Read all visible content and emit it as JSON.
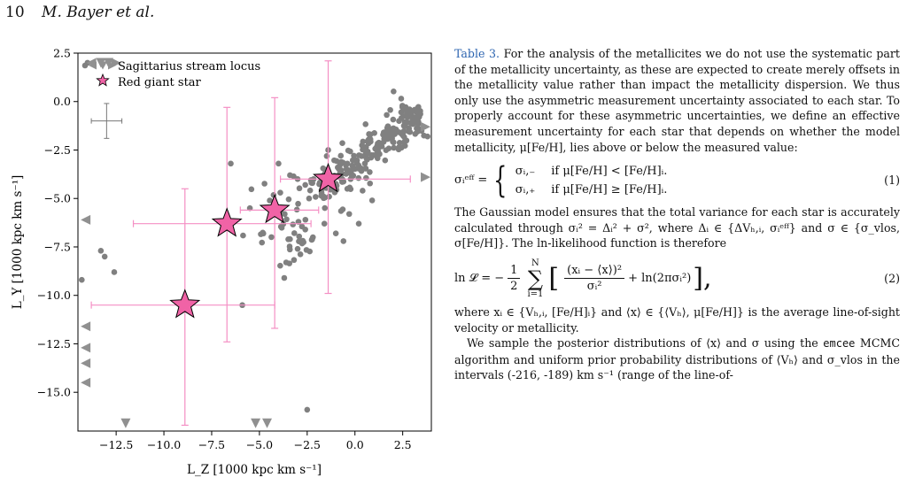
{
  "page_header": {
    "page_number": "10",
    "authors": "M. Bayer et al."
  },
  "figure": {
    "legend": {
      "stream_label": "Sagittarius stream locus",
      "star_label": "Red giant star"
    },
    "colors": {
      "stream": "#808080",
      "star_fill": "#f063a6",
      "error_bars": "#f48fc4"
    },
    "icons": {
      "stream_marker": "circle-and-triangle-markers",
      "star_marker": "star-icon"
    }
  },
  "chart_data": {
    "type": "scatter",
    "xlabel": "L_Z [1000 kpc km s⁻¹]",
    "ylabel": "L_Y [1000 kpc km s⁻¹]",
    "xlim": [
      -14.5,
      4
    ],
    "ylim": [
      -17,
      2.5
    ],
    "xticks": [
      -12.5,
      -10,
      -7.5,
      -5,
      -2.5,
      0,
      2.5
    ],
    "xtick_labels": [
      "−12.5",
      "−10.0",
      "−7.5",
      "−5.0",
      "−2.5",
      "0.0",
      "2.5"
    ],
    "yticks": [
      2.5,
      0,
      -2.5,
      -5,
      -7.5,
      -10,
      -12.5,
      -15
    ],
    "ytick_labels": [
      "2.5",
      "0.0",
      "−2.5",
      "−5.0",
      "−7.5",
      "−10.0",
      "−12.5",
      "−15.0"
    ],
    "legend_position": "top-left",
    "typical_uncertainty": {
      "x": -13.0,
      "y": -1.0,
      "dx": 0.8,
      "dy": 0.9
    },
    "red_giant_stars": [
      {
        "x": -1.4,
        "y": -4.0,
        "xerr": [
          2.5,
          4.3
        ],
        "yerr": [
          5.9,
          6.1
        ]
      },
      {
        "x": -4.2,
        "y": -5.6,
        "xerr": [
          1.8,
          2.3
        ],
        "yerr": [
          6.1,
          5.8
        ]
      },
      {
        "x": -6.7,
        "y": -6.3,
        "xerr": [
          4.9,
          4.4
        ],
        "yerr": [
          6.1,
          6.0
        ]
      },
      {
        "x": -8.9,
        "y": -10.5,
        "xerr": [
          4.9,
          4.7
        ],
        "yerr": [
          6.2,
          6.0
        ]
      }
    ],
    "stream_edge_markers": [
      {
        "x": -13.8,
        "y": 2.0,
        "dir": "left"
      },
      {
        "x": -13.3,
        "y": 2.0,
        "dir": "down"
      },
      {
        "x": -12.9,
        "y": 2.0,
        "dir": "down"
      },
      {
        "x": -12.5,
        "y": 2.0,
        "dir": "right"
      },
      {
        "x": -14.1,
        "y": -6.1,
        "dir": "left"
      },
      {
        "x": -14.1,
        "y": -11.6,
        "dir": "left"
      },
      {
        "x": -14.1,
        "y": -12.7,
        "dir": "left"
      },
      {
        "x": -14.1,
        "y": -13.5,
        "dir": "left"
      },
      {
        "x": -14.1,
        "y": -14.5,
        "dir": "left"
      },
      {
        "x": -12.0,
        "y": -16.6,
        "dir": "down"
      },
      {
        "x": -5.2,
        "y": -16.6,
        "dir": "down"
      },
      {
        "x": -4.6,
        "y": -16.6,
        "dir": "down"
      },
      {
        "x": 3.7,
        "y": -1.3,
        "dir": "right"
      },
      {
        "x": 3.7,
        "y": -3.9,
        "dir": "right"
      }
    ],
    "stream_points_sample": [
      [
        -14.0,
        2.0
      ],
      [
        -12.6,
        -8.8
      ],
      [
        -13.1,
        -8.0
      ],
      [
        -13.3,
        -7.7
      ],
      [
        -6.5,
        -3.2
      ],
      [
        -5.5,
        -5.5
      ],
      [
        -4.0,
        -3.2
      ],
      [
        -3.4,
        -3.8
      ],
      [
        -3.0,
        -4.0
      ],
      [
        -2.6,
        -4.3
      ],
      [
        -2.6,
        -6.6
      ],
      [
        -3.0,
        -7.6
      ],
      [
        -3.6,
        -8.3
      ],
      [
        -3.7,
        -9.1
      ],
      [
        -3.4,
        -7.1
      ],
      [
        -2.2,
        -7.0
      ],
      [
        -2.4,
        -5.0
      ],
      [
        -1.6,
        -6.3
      ],
      [
        -1.0,
        -6.8
      ],
      [
        -0.6,
        -7.2
      ],
      [
        -2.5,
        -15.9
      ],
      [
        -14.3,
        -9.2
      ],
      [
        -1.4,
        -2.5
      ],
      [
        -0.9,
        -3.4
      ],
      [
        -0.4,
        -4.5
      ],
      [
        0.4,
        -4.6
      ],
      [
        0.9,
        -5.1
      ],
      [
        -0.3,
        -5.8
      ],
      [
        0.2,
        -6.3
      ],
      [
        3.8,
        -1.8
      ]
    ]
  },
  "text_column": {
    "p1_ref": "Table 3.",
    "p1_body": "For the analysis of the metallicites we do not use the systematic part of the metallicity uncertainty, as these are expected to create merely offsets in the metallicity value rather than impact the metallicity dispersion. We thus only use the asymmetric measurement uncertainty associated to each star. To properly account for these asymmetric uncertainties, we define an effective measurement uncertainty for each star that depends on whether the model metallicity, μ[Fe/H], lies above or below the measured value:",
    "eq1": {
      "lhs": "σᵢᵉᶠᶠ =",
      "case1": "σᵢ,₋",
      "cond1": "if μ[Fe/H] < [Fe/H]ᵢ.",
      "case2": "σᵢ,₊",
      "cond2": "if μ[Fe/H] ≥ [Fe/H]ᵢ.",
      "number": "(1)"
    },
    "p2": "The Gaussian model ensures that the total variance for each star is accurately calculated through σᵢ² = Δᵢ² + σ², where Δᵢ ∈ {ΔVₕ,ᵢ, σᵢᵉᶠᶠ} and σ ∈ {σ_vlos, σ[Fe/H]}. The ln-likelihood function is therefore",
    "eq2": {
      "lhs": "ln 𝓛 = −",
      "half_num": "1",
      "half_den": "2",
      "sum_top": "N",
      "sum_sym": "∑",
      "sum_bottom": "i=1",
      "bracket_open": "[",
      "frac_num": "(xᵢ − ⟨x⟩)²",
      "frac_den": "σᵢ²",
      "tail": "+ ln(2πσᵢ²)",
      "bracket_close": "],",
      "number": "(2)"
    },
    "p3": "where xᵢ ∈ {Vₕ,ᵢ, [Fe/H]ᵢ} and ⟨x⟩ ∈ {⟨Vₕ⟩, μ[Fe/H]} is the average line-of-sight velocity or metallicity.",
    "p4_a": "We sample the posterior distributions of ⟨x⟩ and σ using the",
    "p4_code": "emcee",
    "p4_b": "MCMC algorithm and uniform prior probability distributions of ⟨Vₕ⟩ and σ_vlos in the intervals (-216, -189) km s⁻¹ (range of the line-of-"
  }
}
